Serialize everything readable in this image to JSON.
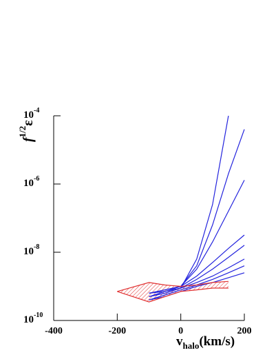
{
  "chart_data": {
    "type": "line",
    "x_label": "vhalo(km/s)",
    "y_label": "f1/2ε",
    "x": [
      -200,
      -100,
      -50,
      0,
      50,
      100,
      150,
      200
    ],
    "xlim": [
      -400,
      200
    ],
    "xticks": [
      -400,
      -200,
      0,
      200
    ],
    "ylim": [
      1e-10,
      0.0001
    ],
    "log_y": true,
    "yticks": [
      {
        "value": 1e-10,
        "label": "10-10"
      },
      {
        "value": 1e-08,
        "label": "10-8"
      },
      {
        "value": 1e-06,
        "label": "10-6"
      },
      {
        "value": 0.0001,
        "label": "10-4"
      }
    ],
    "series": [
      {
        "color": "#2222dd",
        "values": [
          null,
          5e-10,
          6.3e-10,
          8.9e-10,
          6.3e-09,
          2.5e-07,
          0.0001,
          null
        ]
      },
      {
        "color": "#2222dd",
        "values": [
          null,
          6.3e-10,
          7.1e-10,
          1e-09,
          4e-09,
          6.3e-08,
          2e-06,
          4e-05
        ]
      },
      {
        "color": "#2222dd",
        "values": [
          null,
          6.3e-10,
          7.9e-10,
          1e-09,
          3.2e-09,
          2e-08,
          1.6e-07,
          1.3e-06
        ]
      },
      {
        "color": "#2222dd",
        "values": [
          null,
          6.3e-10,
          7.9e-10,
          1e-09,
          2e-09,
          5e-09,
          1.3e-08,
          3.2e-08
        ]
      },
      {
        "color": "#2222dd",
        "values": [
          null,
          5e-10,
          7.1e-10,
          8.9e-10,
          1.6e-09,
          3.2e-09,
          7.1e-09,
          1.6e-08
        ]
      },
      {
        "color": "#2222dd",
        "values": [
          null,
          5e-10,
          6.3e-10,
          8.9e-10,
          1.3e-09,
          2e-09,
          3.5e-09,
          6.3e-09
        ]
      },
      {
        "color": "#2222dd",
        "values": [
          null,
          4e-10,
          5.6e-10,
          7.9e-10,
          1.1e-09,
          1.6e-09,
          2.5e-09,
          4e-09
        ]
      },
      {
        "color": "#2222dd",
        "values": [
          null,
          4e-10,
          5e-10,
          7.1e-10,
          1e-09,
          1.3e-09,
          1.8e-09,
          2.5e-09
        ]
      },
      {
        "color": "#e03030",
        "values": [
          7.1e-10,
          1.3e-09,
          1.1e-09,
          1e-09,
          1.1e-09,
          1.3e-09,
          1.4e-09,
          null
        ]
      },
      {
        "color": "#e03030",
        "values": [
          7.1e-10,
          3.5e-10,
          5e-10,
          7.1e-10,
          7.9e-10,
          8.9e-10,
          8.9e-10,
          null
        ]
      }
    ]
  }
}
